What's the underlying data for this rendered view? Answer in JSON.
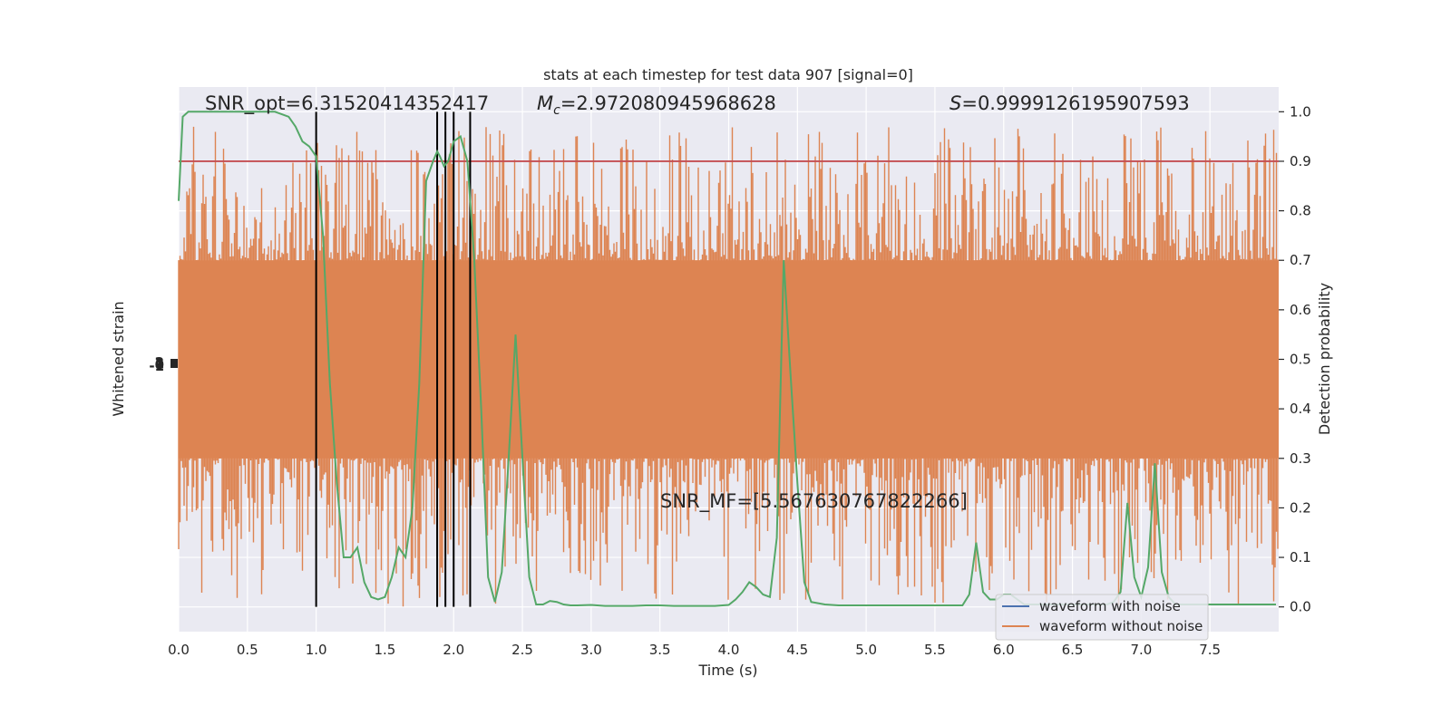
{
  "chart_data": {
    "type": "line",
    "title": "stats at each timestep for test data 907 [signal=0]",
    "xlabel": "Time (s)",
    "ylabel_left": "Whitened strain",
    "ylabel_right": "Detection probability",
    "xlim": [
      0.0,
      8.0
    ],
    "ylim_right": [
      -0.05,
      1.05
    ],
    "grid": true,
    "x_ticks": [
      "0.0",
      "0.5",
      "1.0",
      "1.5",
      "2.0",
      "2.5",
      "3.0",
      "3.5",
      "4.0",
      "4.5",
      "5.0",
      "5.5",
      "6.0",
      "6.5",
      "7.0",
      "7.5"
    ],
    "y_ticks_right": [
      "0.0",
      "0.1",
      "0.2",
      "0.3",
      "0.4",
      "0.5",
      "0.6",
      "0.7",
      "0.8",
      "0.9",
      "1.0"
    ],
    "y_ticks_left_overlapped": [
      "-1",
      "0",
      "1",
      "2"
    ],
    "annotations": {
      "snr_opt": "SNR_opt=6.31520414352417",
      "mc_symbol": "M",
      "mc_sub": "c",
      "mc_value": "=2.972080945968628",
      "s_symbol": "S",
      "s_value": "=0.9999126195907593",
      "snr_mf": "SNR_MF=[5.567630767822266]"
    },
    "threshold": {
      "value": 0.9,
      "color": "#c44e52"
    },
    "vertical_markers": [
      1.0,
      1.88,
      1.94,
      2.0,
      2.12
    ],
    "legend": {
      "position": "lower-right",
      "entries": [
        {
          "label": "waveform with noise",
          "color": "#4c72b0"
        },
        {
          "label": "waveform without noise",
          "color": "#dd8452"
        }
      ]
    },
    "series": [
      {
        "name": "waveform without noise",
        "axis": "right_equivalent",
        "color": "#dd8452",
        "band_low": 0.3,
        "band_high": 0.7,
        "spike_max": 0.97,
        "spike_min": 0.0
      },
      {
        "axis": "right",
        "color": "#55a868",
        "x": [
          0.0,
          0.03,
          0.07,
          0.12,
          0.2,
          0.3,
          0.4,
          0.5,
          0.6,
          0.7,
          0.8,
          0.85,
          0.9,
          0.95,
          1.0,
          1.05,
          1.1,
          1.15,
          1.2,
          1.25,
          1.3,
          1.35,
          1.4,
          1.45,
          1.5,
          1.55,
          1.6,
          1.65,
          1.7,
          1.75,
          1.8,
          1.85,
          1.88,
          1.9,
          1.93,
          1.96,
          2.0,
          2.05,
          2.1,
          2.15,
          2.2,
          2.25,
          2.3,
          2.35,
          2.4,
          2.45,
          2.5,
          2.55,
          2.6,
          2.65,
          2.7,
          2.75,
          2.8,
          2.85,
          2.9,
          3.0,
          3.1,
          3.2,
          3.3,
          3.4,
          3.5,
          3.6,
          3.7,
          3.8,
          3.9,
          4.0,
          4.05,
          4.1,
          4.15,
          4.2,
          4.25,
          4.3,
          4.35,
          4.4,
          4.45,
          4.5,
          4.55,
          4.6,
          4.7,
          4.8,
          4.9,
          5.0,
          5.1,
          5.2,
          5.3,
          5.4,
          5.5,
          5.6,
          5.7,
          5.75,
          5.8,
          5.85,
          5.9,
          5.95,
          6.0,
          6.05,
          6.1,
          6.15,
          6.2,
          6.3,
          6.4,
          6.5,
          6.6,
          6.7,
          6.75,
          6.8,
          6.85,
          6.9,
          6.95,
          7.0,
          7.05,
          7.1,
          7.15,
          7.2,
          7.25,
          7.3,
          7.4,
          7.5,
          7.6,
          7.7,
          7.8,
          7.9,
          7.98
        ],
        "y": [
          0.82,
          0.99,
          1.0,
          1.0,
          1.0,
          1.0,
          1.0,
          1.0,
          1.0,
          1.0,
          0.99,
          0.97,
          0.94,
          0.93,
          0.91,
          0.75,
          0.45,
          0.25,
          0.1,
          0.1,
          0.12,
          0.05,
          0.02,
          0.015,
          0.02,
          0.06,
          0.12,
          0.1,
          0.2,
          0.45,
          0.86,
          0.9,
          0.92,
          0.91,
          0.89,
          0.9,
          0.94,
          0.95,
          0.9,
          0.7,
          0.4,
          0.06,
          0.01,
          0.07,
          0.3,
          0.55,
          0.3,
          0.06,
          0.005,
          0.005,
          0.012,
          0.01,
          0.005,
          0.003,
          0.003,
          0.004,
          0.002,
          0.002,
          0.002,
          0.003,
          0.003,
          0.002,
          0.002,
          0.002,
          0.002,
          0.004,
          0.015,
          0.03,
          0.05,
          0.04,
          0.025,
          0.02,
          0.14,
          0.7,
          0.47,
          0.25,
          0.05,
          0.01,
          0.005,
          0.003,
          0.003,
          0.003,
          0.003,
          0.003,
          0.003,
          0.003,
          0.003,
          0.003,
          0.003,
          0.025,
          0.13,
          0.03,
          0.015,
          0.015,
          0.025,
          0.025,
          0.015,
          0.005,
          0.005,
          0.005,
          0.005,
          0.005,
          0.005,
          0.005,
          0.005,
          0.01,
          0.03,
          0.21,
          0.06,
          0.02,
          0.08,
          0.29,
          0.07,
          0.02,
          0.005,
          0.005,
          0.005,
          0.005,
          0.005,
          0.005,
          0.005,
          0.005,
          0.005
        ]
      }
    ]
  }
}
